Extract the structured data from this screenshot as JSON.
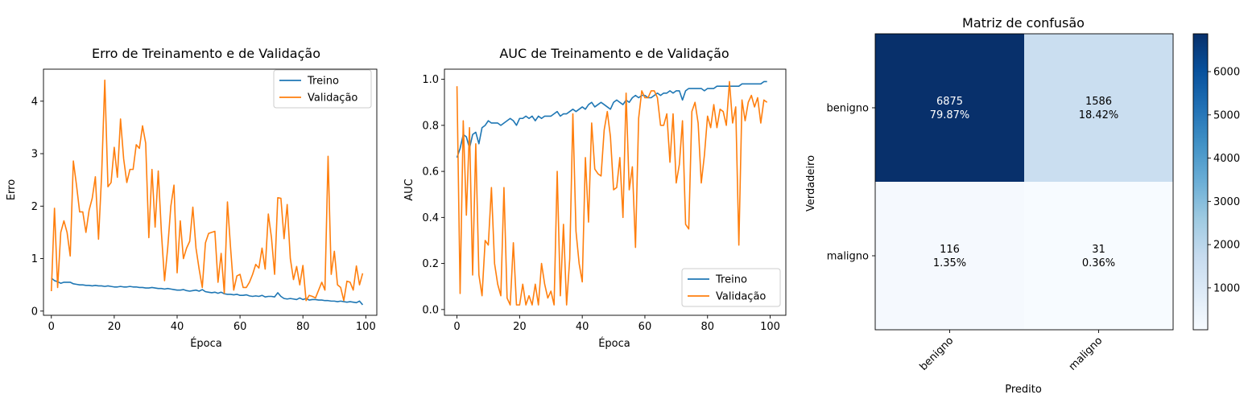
{
  "chart_data": [
    {
      "type": "line",
      "title": "Erro de Treinamento e de Validação",
      "xlabel": "Época",
      "ylabel": "Erro",
      "xlim": [
        -2.5,
        103.5
      ],
      "ylim": [
        -0.08,
        4.61
      ],
      "xticks": [
        0,
        20,
        40,
        60,
        80,
        100
      ],
      "yticks": [
        0,
        1,
        2,
        3,
        4
      ],
      "legend_position": "upper right",
      "series": [
        {
          "name": "Treino",
          "color": "#1f77b4",
          "values": [
            0.63,
            0.58,
            0.56,
            0.53,
            0.55,
            0.55,
            0.55,
            0.52,
            0.51,
            0.5,
            0.5,
            0.49,
            0.49,
            0.48,
            0.49,
            0.48,
            0.48,
            0.47,
            0.48,
            0.47,
            0.46,
            0.46,
            0.47,
            0.46,
            0.46,
            0.47,
            0.46,
            0.46,
            0.45,
            0.45,
            0.44,
            0.44,
            0.45,
            0.44,
            0.43,
            0.43,
            0.42,
            0.43,
            0.42,
            0.41,
            0.4,
            0.4,
            0.41,
            0.39,
            0.38,
            0.39,
            0.4,
            0.38,
            0.41,
            0.37,
            0.36,
            0.35,
            0.36,
            0.34,
            0.36,
            0.33,
            0.32,
            0.32,
            0.31,
            0.32,
            0.3,
            0.3,
            0.31,
            0.29,
            0.28,
            0.29,
            0.28,
            0.3,
            0.27,
            0.28,
            0.28,
            0.27,
            0.35,
            0.28,
            0.24,
            0.23,
            0.24,
            0.23,
            0.22,
            0.25,
            0.22,
            0.24,
            0.21,
            0.22,
            0.22,
            0.21,
            0.21,
            0.2,
            0.2,
            0.19,
            0.19,
            0.18,
            0.19,
            0.18,
            0.17,
            0.18,
            0.17,
            0.16,
            0.19,
            0.12
          ]
        },
        {
          "name": "Validação",
          "color": "#ff7f0e",
          "values": [
            0.38,
            1.96,
            0.45,
            1.5,
            1.72,
            1.5,
            1.05,
            2.86,
            2.4,
            1.89,
            1.89,
            1.5,
            1.92,
            2.15,
            2.56,
            1.37,
            2.6,
            4.4,
            2.37,
            2.45,
            3.12,
            2.55,
            3.66,
            2.9,
            2.45,
            2.7,
            2.7,
            3.17,
            3.1,
            3.53,
            3.2,
            1.4,
            2.7,
            1.6,
            2.67,
            1.5,
            0.58,
            1.2,
            2.0,
            2.4,
            0.73,
            1.72,
            1.0,
            1.2,
            1.33,
            1.98,
            1.2,
            0.8,
            0.45,
            1.3,
            1.48,
            1.5,
            1.52,
            0.55,
            1.1,
            0.34,
            2.08,
            1.2,
            0.4,
            0.67,
            0.7,
            0.45,
            0.45,
            0.55,
            0.7,
            0.89,
            0.82,
            1.2,
            0.8,
            1.85,
            1.4,
            0.7,
            2.16,
            2.15,
            1.38,
            2.03,
            1.0,
            0.6,
            0.85,
            0.5,
            0.87,
            0.2,
            0.3,
            0.28,
            0.25,
            0.4,
            0.55,
            0.4,
            2.95,
            0.7,
            1.14,
            0.5,
            0.45,
            0.2,
            0.57,
            0.55,
            0.4,
            0.86,
            0.5,
            0.72
          ]
        }
      ]
    },
    {
      "type": "line",
      "title": "AUC de Treinamento e de Validação",
      "xlabel": "Época",
      "ylabel": "AUC",
      "xlim": [
        -4.0,
        105.0
      ],
      "ylim": [
        -0.025,
        1.044
      ],
      "xticks": [
        0,
        20,
        40,
        60,
        80,
        100
      ],
      "yticks": [
        0.0,
        0.2,
        0.4,
        0.6,
        0.8,
        1.0
      ],
      "legend_position": "lower right",
      "series": [
        {
          "name": "Treino",
          "color": "#1f77b4",
          "values": [
            0.66,
            0.7,
            0.76,
            0.75,
            0.7,
            0.76,
            0.77,
            0.72,
            0.79,
            0.8,
            0.82,
            0.81,
            0.81,
            0.81,
            0.8,
            0.81,
            0.82,
            0.83,
            0.82,
            0.8,
            0.83,
            0.83,
            0.84,
            0.83,
            0.84,
            0.82,
            0.84,
            0.83,
            0.84,
            0.84,
            0.84,
            0.85,
            0.86,
            0.84,
            0.85,
            0.85,
            0.86,
            0.87,
            0.86,
            0.87,
            0.88,
            0.87,
            0.89,
            0.9,
            0.88,
            0.89,
            0.9,
            0.89,
            0.88,
            0.87,
            0.9,
            0.91,
            0.9,
            0.89,
            0.91,
            0.9,
            0.92,
            0.93,
            0.92,
            0.93,
            0.93,
            0.92,
            0.92,
            0.93,
            0.94,
            0.93,
            0.94,
            0.94,
            0.95,
            0.94,
            0.95,
            0.95,
            0.91,
            0.95,
            0.96,
            0.96,
            0.96,
            0.96,
            0.96,
            0.95,
            0.96,
            0.96,
            0.96,
            0.97,
            0.97,
            0.97,
            0.97,
            0.97,
            0.97,
            0.97,
            0.97,
            0.98,
            0.98,
            0.98,
            0.98,
            0.98,
            0.98,
            0.98,
            0.99,
            0.99
          ]
        },
        {
          "name": "Validação",
          "color": "#ff7f0e",
          "values": [
            0.97,
            0.07,
            0.82,
            0.41,
            0.79,
            0.15,
            0.72,
            0.15,
            0.06,
            0.3,
            0.28,
            0.53,
            0.2,
            0.11,
            0.06,
            0.53,
            0.05,
            0.02,
            0.29,
            0.02,
            0.02,
            0.11,
            0.02,
            0.06,
            0.02,
            0.11,
            0.02,
            0.2,
            0.11,
            0.05,
            0.08,
            0.02,
            0.6,
            0.06,
            0.37,
            0.02,
            0.22,
            0.85,
            0.34,
            0.2,
            0.12,
            0.66,
            0.38,
            0.81,
            0.61,
            0.59,
            0.58,
            0.78,
            0.86,
            0.75,
            0.52,
            0.53,
            0.66,
            0.4,
            0.94,
            0.52,
            0.62,
            0.27,
            0.83,
            0.95,
            0.92,
            0.92,
            0.95,
            0.95,
            0.92,
            0.8,
            0.8,
            0.85,
            0.64,
            0.85,
            0.55,
            0.63,
            0.82,
            0.37,
            0.35,
            0.86,
            0.9,
            0.81,
            0.55,
            0.67,
            0.84,
            0.79,
            0.89,
            0.79,
            0.87,
            0.86,
            0.8,
            0.99,
            0.81,
            0.88,
            0.28,
            0.91,
            0.82,
            0.9,
            0.93,
            0.88,
            0.92,
            0.81,
            0.91,
            0.9
          ]
        }
      ]
    },
    {
      "type": "heatmap",
      "title": "Matriz de confusão",
      "xlabel": "Predito",
      "ylabel": "Verdadeiro",
      "x_categories": [
        "benigno",
        "maligno"
      ],
      "y_categories": [
        "benigno",
        "maligno"
      ],
      "values": [
        [
          6875,
          1586
        ],
        [
          116,
          31
        ]
      ],
      "percentages": [
        [
          "79.87%",
          "18.42%"
        ],
        [
          "1.35%",
          "0.36%"
        ]
      ],
      "colormap": "Blues",
      "colorbar_range": [
        31,
        6875
      ],
      "colorbar_ticks": [
        1000,
        2000,
        3000,
        4000,
        5000,
        6000
      ]
    }
  ]
}
